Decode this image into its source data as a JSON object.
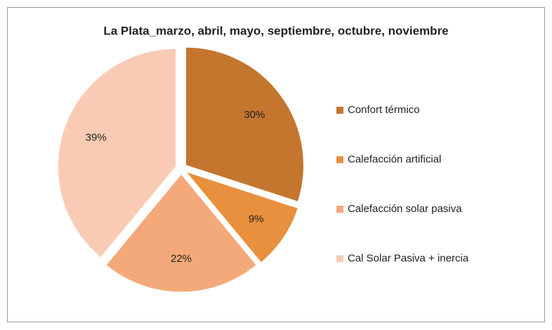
{
  "chart_data": {
    "type": "pie",
    "title": "La Plata_marzo, abril, mayo, septiembre, octubre, noviembre",
    "categories": [
      "Confort térmico",
      "Calefacción artificial",
      "Calefacción solar pasiva",
      "Cal Solar Pasiva + inercia"
    ],
    "values": [
      30,
      9,
      22,
      39
    ],
    "value_labels": [
      "30%",
      "9%",
      "22%",
      "39%"
    ],
    "colors": [
      "#c4762f",
      "#e8903e",
      "#f4a97a",
      "#f9cbb4"
    ],
    "legend": "right"
  }
}
